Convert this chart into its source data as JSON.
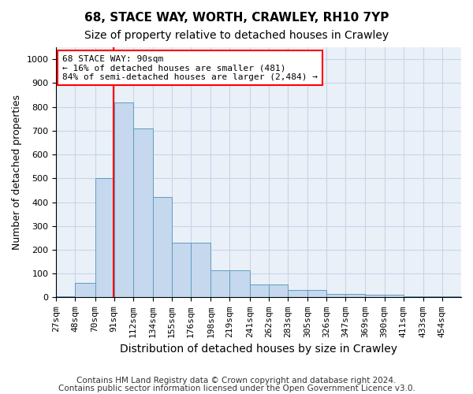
{
  "title1": "68, STACE WAY, WORTH, CRAWLEY, RH10 7YP",
  "title2": "Size of property relative to detached houses in Crawley",
  "xlabel": "Distribution of detached houses by size in Crawley",
  "ylabel": "Number of detached properties",
  "bar_values": [
    5,
    60,
    500,
    820,
    710,
    420,
    230,
    230,
    115,
    115,
    55,
    55,
    30,
    30,
    15,
    15,
    10,
    10,
    5,
    5,
    5
  ],
  "bin_edges": [
    27,
    48,
    70,
    91,
    112,
    134,
    155,
    176,
    198,
    219,
    241,
    262,
    283,
    305,
    326,
    347,
    369,
    390,
    411,
    433,
    454,
    475
  ],
  "tick_labels": [
    "27sqm",
    "48sqm",
    "70sqm",
    "91sqm",
    "112sqm",
    "134sqm",
    "155sqm",
    "176sqm",
    "198sqm",
    "219sqm",
    "241sqm",
    "262sqm",
    "283sqm",
    "305sqm",
    "326sqm",
    "347sqm",
    "369sqm",
    "390sqm",
    "411sqm",
    "433sqm",
    "454sqm"
  ],
  "bar_color": "#c5d8ed",
  "bar_edge_color": "#5f9dc0",
  "red_line_x": 90,
  "ylim": [
    0,
    1050
  ],
  "yticks": [
    0,
    100,
    200,
    300,
    400,
    500,
    600,
    700,
    800,
    900,
    1000
  ],
  "annotation_box_text": "68 STACE WAY: 90sqm\n← 16% of detached houses are smaller (481)\n84% of semi-detached houses are larger (2,484) →",
  "footer1": "Contains HM Land Registry data © Crown copyright and database right 2024.",
  "footer2": "Contains public sector information licensed under the Open Government Licence v3.0.",
  "background_color": "#ffffff",
  "ax_background_color": "#eaf0f8",
  "grid_color": "#c8d4e8",
  "title1_fontsize": 11,
  "title2_fontsize": 10,
  "xlabel_fontsize": 10,
  "ylabel_fontsize": 9,
  "tick_fontsize": 8,
  "footer_fontsize": 7.5
}
